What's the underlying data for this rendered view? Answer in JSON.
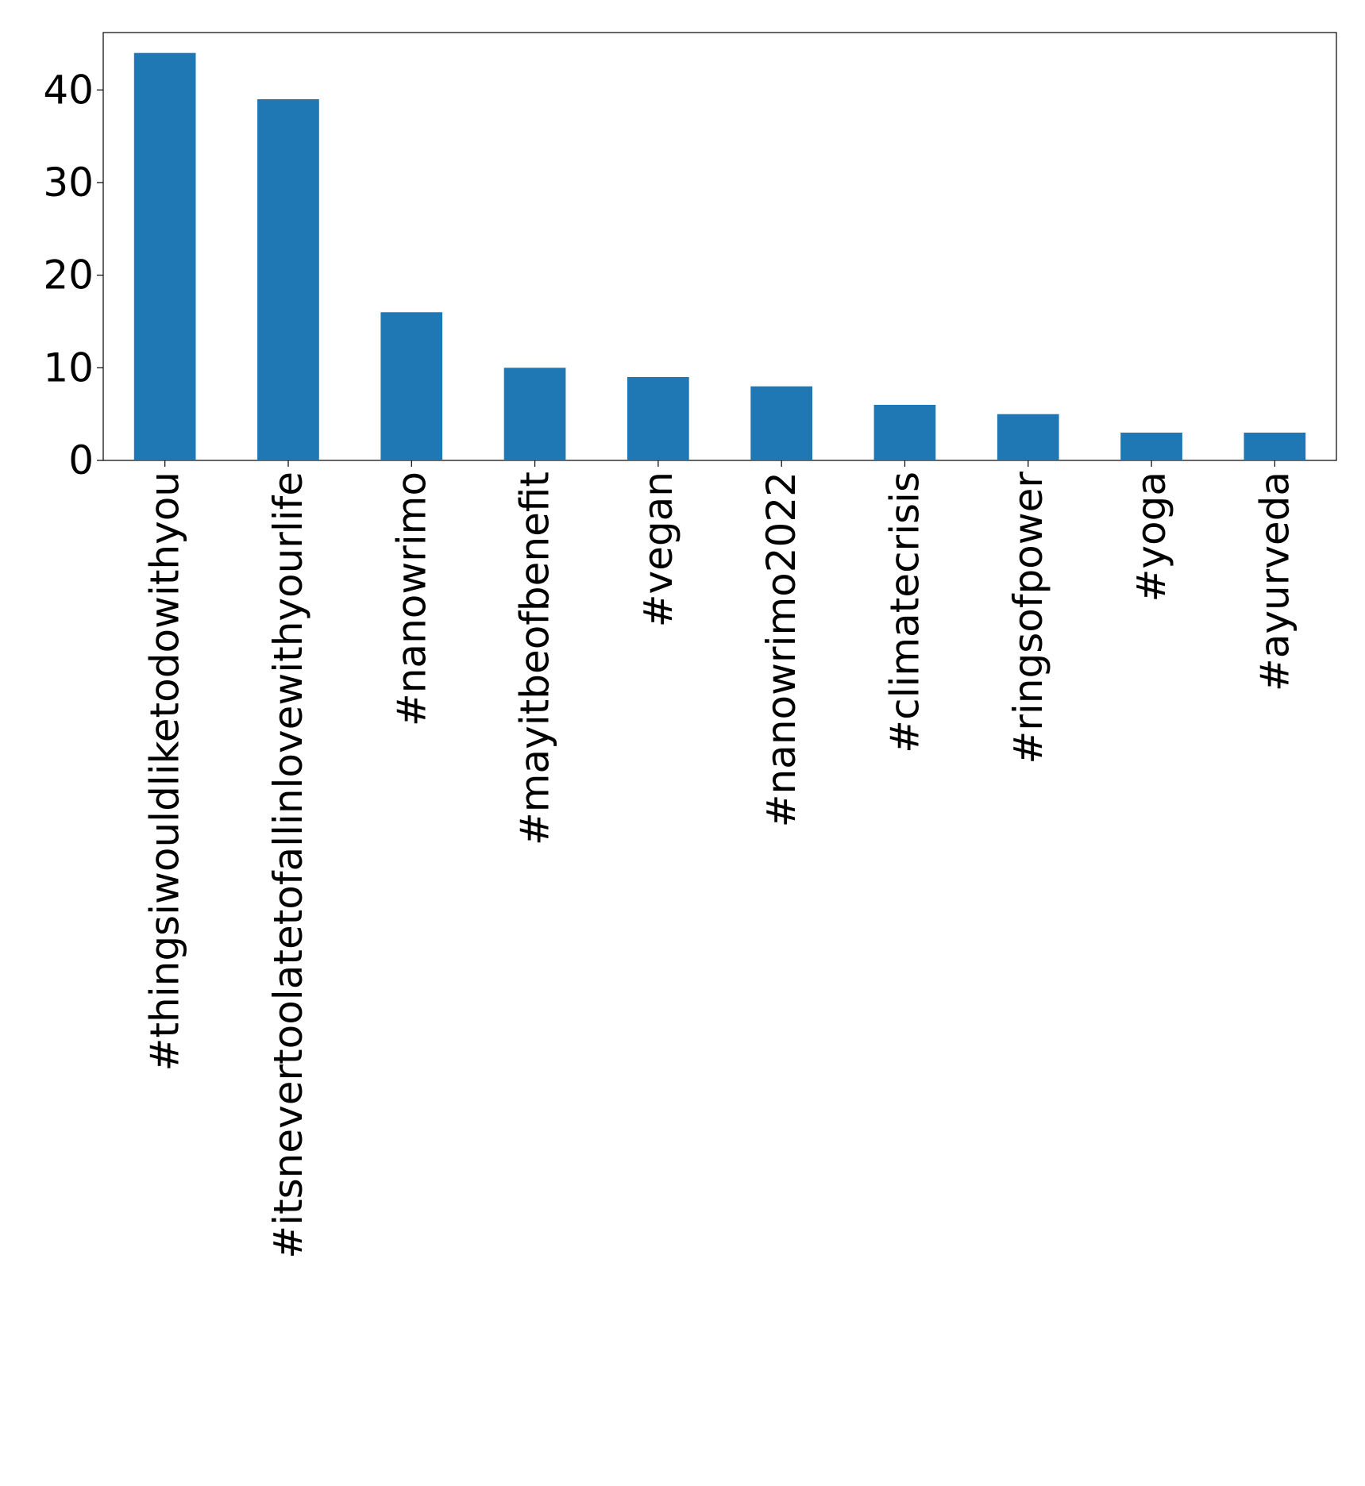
{
  "chart_data": {
    "type": "bar",
    "title": "",
    "xlabel": "",
    "ylabel": "",
    "categories": [
      "#thingsiwouldliketodowithyou",
      "#itsnevertoolatetofallinlovewithyourlife",
      "#nanowrimo",
      "#mayitbeofbenefit",
      "#vegan",
      "#nanowrimo2022",
      "#climatecrisis",
      "#ringsofpower",
      "#yoga",
      "#ayurveda"
    ],
    "values": [
      44,
      39,
      16,
      10,
      9,
      8,
      6,
      5,
      3,
      3
    ],
    "ylim": [
      0,
      46.2
    ],
    "yticks": [
      0,
      10,
      20,
      30,
      40
    ],
    "bar_color": "#1f77b4",
    "grid": false,
    "legend": "none"
  }
}
